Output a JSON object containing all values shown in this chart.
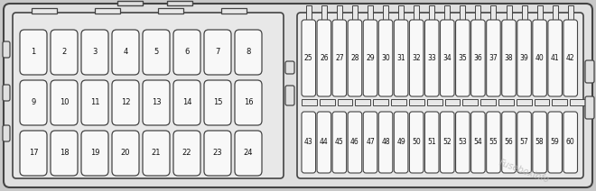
{
  "bg_outer": "#c8c8c8",
  "bg_panel": "#e0e0e0",
  "bg_left_box": "#e8e8e8",
  "bg_right_box": "#e8e8e8",
  "fuse_fill": "#f8f8f8",
  "fuse_edge": "#444444",
  "border_color": "#444444",
  "text_color": "#111111",
  "left_rows": [
    [
      1,
      2,
      3,
      4,
      5,
      6,
      7,
      8
    ],
    [
      9,
      10,
      11,
      12,
      13,
      14,
      15,
      16
    ],
    [
      17,
      18,
      19,
      20,
      21,
      22,
      23,
      24
    ]
  ],
  "right_top_row": [
    25,
    26,
    27,
    28,
    29,
    30,
    31,
    32,
    33,
    34,
    35,
    36,
    37,
    38,
    39,
    40,
    41,
    42
  ],
  "right_bottom_row": [
    43,
    44,
    45,
    46,
    47,
    48,
    49,
    50,
    51,
    52,
    53,
    54,
    55,
    56,
    57,
    58,
    59,
    60
  ],
  "watermark": "Fuseboxinfo",
  "watermark_color": "#bbbbbb",
  "figwidth": 6.6,
  "figheight": 2.12,
  "dpi": 100
}
